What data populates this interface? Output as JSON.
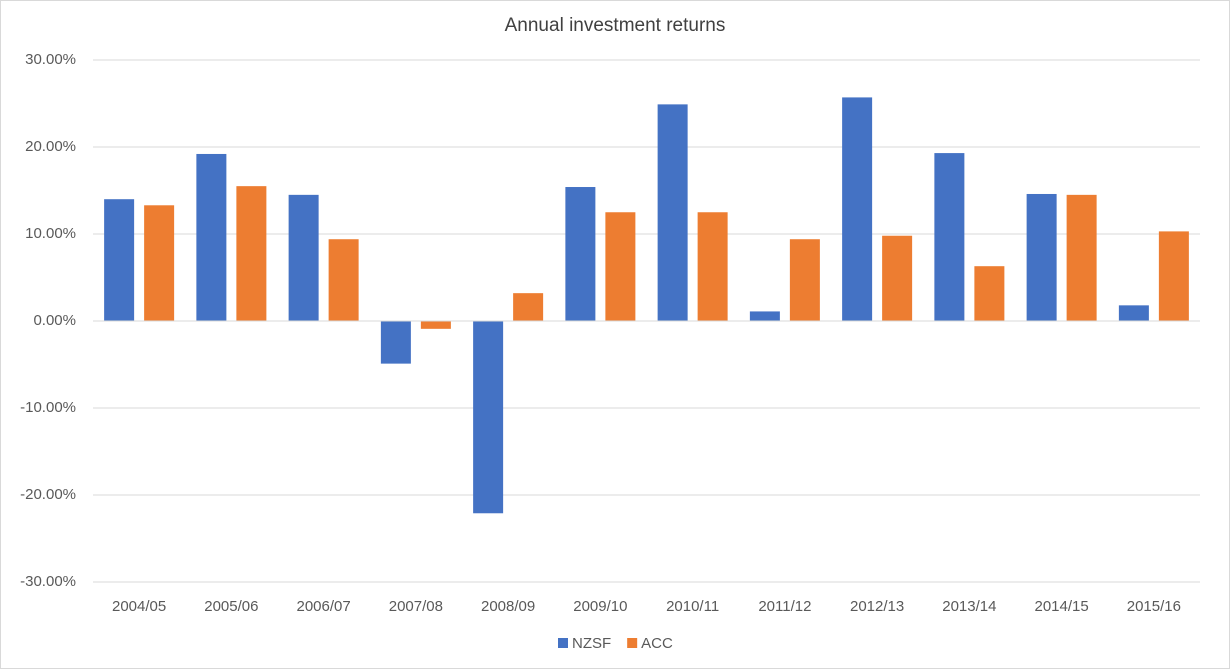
{
  "chart_data": {
    "type": "bar",
    "title": "Annual investment returns",
    "categories": [
      "2004/05",
      "2005/06",
      "2006/07",
      "2007/08",
      "2008/09",
      "2009/10",
      "2010/11",
      "2011/12",
      "2012/13",
      "2013/14",
      "2014/15",
      "2015/16"
    ],
    "series": [
      {
        "name": "NZSF",
        "color": "#4472c4",
        "values": [
          14.0,
          19.2,
          14.5,
          -4.9,
          -22.1,
          15.4,
          24.9,
          1.1,
          25.7,
          19.3,
          14.6,
          1.8
        ]
      },
      {
        "name": "ACC",
        "color": "#ed7d31",
        "values": [
          13.3,
          15.5,
          9.4,
          -0.9,
          3.2,
          12.5,
          12.5,
          9.4,
          9.8,
          6.3,
          14.5,
          10.3
        ]
      }
    ],
    "ylim": [
      -30,
      30
    ],
    "yticks": [
      {
        "value": -30,
        "label": "-30.00%"
      },
      {
        "value": -20,
        "label": "-20.00%"
      },
      {
        "value": -10,
        "label": "-10.00%"
      },
      {
        "value": 0,
        "label": "0.00%"
      },
      {
        "value": 10,
        "label": "10.00%"
      },
      {
        "value": 20,
        "label": "20.00%"
      },
      {
        "value": 30,
        "label": "30.00%"
      }
    ],
    "grid": true,
    "legend": "bottom"
  }
}
